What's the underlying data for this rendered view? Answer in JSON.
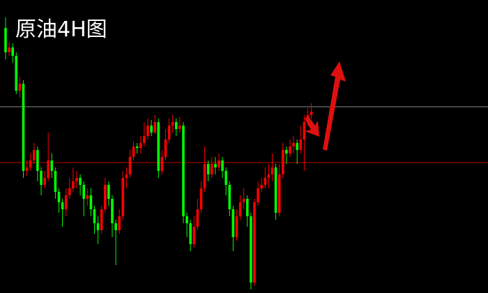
{
  "chart_data": {
    "type": "candlestick",
    "title": "原油4H图",
    "up_color": "#ff0000",
    "down_color": "#00ff00",
    "ylim": [
      0,
      420
    ],
    "levels": [
      {
        "value": 267,
        "color": "#8c8c8c"
      },
      {
        "value": 187,
        "color": "#c00000"
      }
    ],
    "open": [
      380,
      345,
      352,
      340,
      290,
      300,
      175,
      180,
      190,
      205,
      175,
      155,
      165,
      190,
      175,
      145,
      130,
      120,
      140,
      150,
      160,
      165,
      155,
      135,
      140,
      120,
      100,
      90,
      120,
      155,
      135,
      100,
      90,
      110,
      165,
      170,
      195,
      210,
      208,
      215,
      225,
      240,
      230,
      245,
      175,
      195,
      220,
      240,
      245,
      235,
      240,
      110,
      100,
      70,
      95,
      120,
      150,
      185,
      170,
      185,
      180,
      190,
      175,
      155,
      120,
      80,
      110,
      130,
      135,
      110,
      15,
      130,
      150,
      155,
      165,
      170,
      180,
      115,
      170,
      205,
      200,
      210,
      215,
      205,
      220,
      245,
      255
    ],
    "high": [
      395,
      360,
      358,
      345,
      310,
      305,
      190,
      200,
      215,
      210,
      180,
      175,
      230,
      200,
      180,
      150,
      135,
      150,
      165,
      180,
      175,
      170,
      160,
      150,
      150,
      125,
      110,
      125,
      165,
      160,
      140,
      105,
      120,
      175,
      180,
      205,
      218,
      215,
      225,
      245,
      250,
      248,
      255,
      250,
      205,
      235,
      250,
      255,
      250,
      252,
      245,
      115,
      105,
      110,
      135,
      160,
      210,
      190,
      195,
      195,
      200,
      195,
      180,
      160,
      125,
      120,
      140,
      150,
      140,
      115,
      135,
      160,
      165,
      180,
      185,
      200,
      185,
      185,
      215,
      210,
      220,
      225,
      220,
      240,
      255,
      265,
      272
    ],
    "low": [
      335,
      340,
      330,
      285,
      280,
      165,
      168,
      175,
      185,
      160,
      140,
      150,
      160,
      165,
      135,
      115,
      95,
      110,
      135,
      145,
      150,
      140,
      110,
      125,
      110,
      85,
      70,
      85,
      115,
      125,
      80,
      40,
      85,
      105,
      150,
      165,
      190,
      200,
      200,
      210,
      220,
      225,
      228,
      165,
      170,
      190,
      215,
      230,
      225,
      230,
      100,
      80,
      60,
      65,
      90,
      115,
      145,
      160,
      165,
      170,
      175,
      165,
      140,
      110,
      60,
      75,
      105,
      120,
      95,
      5,
      10,
      125,
      145,
      150,
      150,
      160,
      105,
      110,
      165,
      185,
      195,
      200,
      185,
      200,
      175,
      240,
      250
    ],
    "close": [
      345,
      352,
      340,
      290,
      300,
      175,
      180,
      190,
      205,
      175,
      155,
      165,
      190,
      175,
      145,
      130,
      120,
      140,
      150,
      160,
      165,
      155,
      135,
      140,
      120,
      100,
      90,
      120,
      155,
      135,
      100,
      90,
      110,
      165,
      170,
      195,
      210,
      208,
      215,
      225,
      240,
      230,
      245,
      175,
      195,
      220,
      240,
      245,
      235,
      240,
      110,
      100,
      70,
      95,
      120,
      150,
      185,
      170,
      185,
      180,
      190,
      175,
      155,
      120,
      80,
      110,
      130,
      135,
      110,
      15,
      130,
      150,
      155,
      165,
      170,
      180,
      115,
      170,
      205,
      200,
      210,
      215,
      205,
      220,
      245,
      255,
      260
    ]
  }
}
